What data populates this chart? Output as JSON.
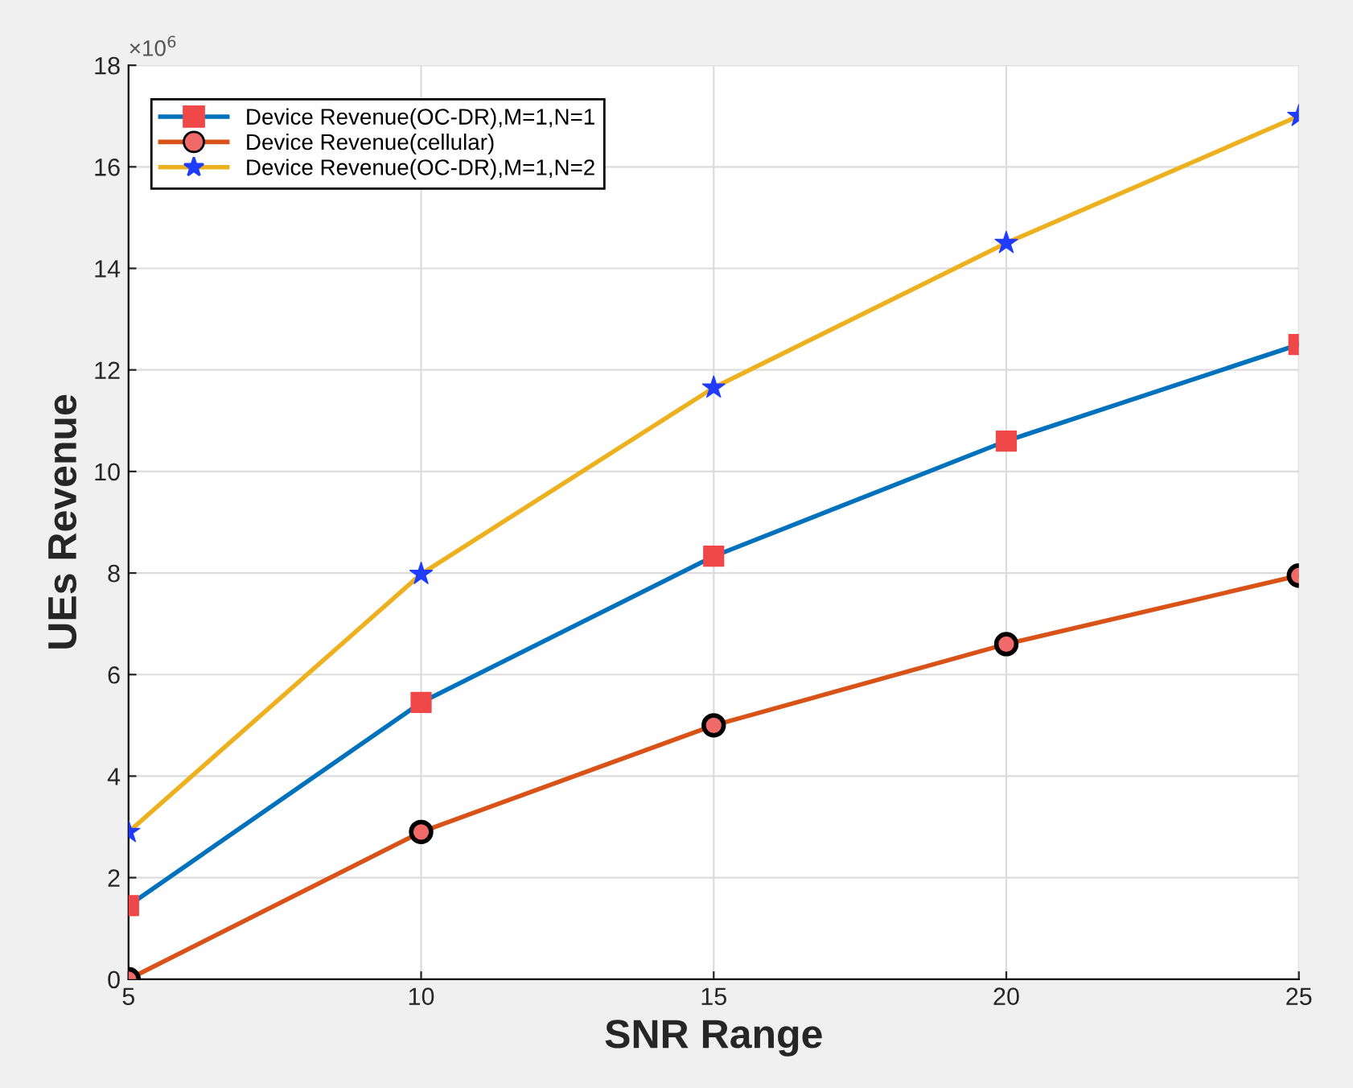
{
  "chart_data": {
    "type": "line",
    "xlabel": "SNR Range",
    "ylabel": "UEs Revenue",
    "x": [
      5,
      10,
      15,
      20,
      25
    ],
    "series": [
      {
        "name": "Device Revenue(OC-DR),M=1,N=1",
        "color": "#0072bd",
        "marker": "square",
        "colors": [
          "#f04848",
          "#f04848",
          "#f04848",
          "#f04848",
          "#f04848"
        ],
        "values": [
          1.45,
          5.45,
          8.33,
          10.6,
          12.5
        ]
      },
      {
        "name": "Device Revenue(cellular)",
        "color": "#d95319",
        "marker": "circle",
        "colors": [
          "#f06a6a",
          "#f06a6a",
          "#f06a6a",
          "#f06a6a",
          "#f06a6a"
        ],
        "values": [
          0,
          2.9,
          5.0,
          6.6,
          7.95
        ]
      },
      {
        "name": "Device Revenue(OC-DR),M=1,N=2",
        "color": "#edb120",
        "marker": "star",
        "colors": [
          "#1f3cff",
          "#1f3cff",
          "#1f3cff",
          "#1f3cff",
          "#1f3cff"
        ],
        "values": [
          2.9,
          7.98,
          11.65,
          14.5,
          17.0
        ]
      }
    ],
    "xlim": [
      5,
      25
    ],
    "xticks": [
      5,
      10,
      15,
      20,
      25
    ],
    "ylim": [
      0,
      18
    ],
    "yticks": [
      0,
      2,
      4,
      6,
      8,
      10,
      12,
      14,
      16,
      18
    ],
    "annotations": [
      "×10$^{6}$"
    ],
    "grid": true,
    "legend": "top left",
    "line_style": "solid"
  }
}
